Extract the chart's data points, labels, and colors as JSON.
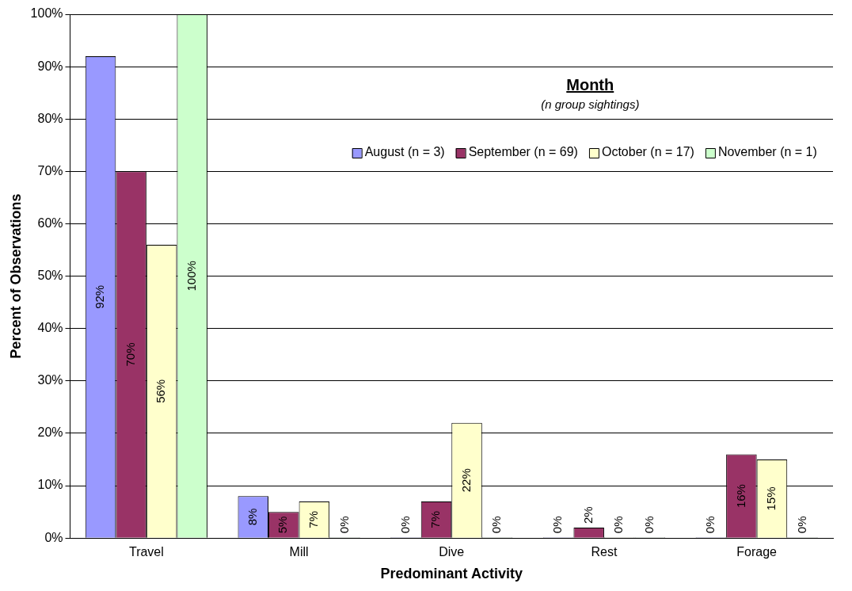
{
  "chart_data": {
    "type": "bar",
    "xlabel": "Predominant Activity",
    "ylabel": "Percent of Observations",
    "legend_title": "Month",
    "annotations": [
      "(n group sightings)"
    ],
    "categories": [
      "Travel",
      "Mill",
      "Dive",
      "Rest",
      "Forage"
    ],
    "series": [
      {
        "name": "August (n = 3)",
        "color": "#9999ff",
        "values": [
          92,
          8,
          0,
          0,
          0
        ],
        "value_labels": [
          "92%",
          "8%",
          "0%",
          "0%",
          "0%"
        ]
      },
      {
        "name": "September (n = 69)",
        "color": "#993366",
        "values": [
          70,
          5,
          7,
          2,
          16
        ],
        "value_labels": [
          "70%",
          "5%",
          "7%",
          "2%",
          "16%"
        ]
      },
      {
        "name": "October (n = 17)",
        "color": "#ffffcc",
        "values": [
          56,
          7,
          22,
          0,
          15
        ],
        "value_labels": [
          "56%",
          "7%",
          "22%",
          "0%",
          "15%"
        ]
      },
      {
        "name": "November (n = 1)",
        "color": "#ccffcc",
        "values": [
          100,
          0,
          0,
          0,
          0
        ],
        "value_labels": [
          "100%",
          "0%",
          "0%",
          "0%",
          "0%"
        ]
      }
    ],
    "ylim": [
      0,
      100
    ],
    "yticks": [
      {
        "value": 0,
        "label": "0%"
      },
      {
        "value": 10,
        "label": "10%"
      },
      {
        "value": 20,
        "label": "20%"
      },
      {
        "value": 30,
        "label": "30%"
      },
      {
        "value": 40,
        "label": "40%"
      },
      {
        "value": 50,
        "label": "50%"
      },
      {
        "value": 60,
        "label": "60%"
      },
      {
        "value": 70,
        "label": "70%"
      },
      {
        "value": 80,
        "label": "80%"
      },
      {
        "value": 90,
        "label": "90%"
      },
      {
        "value": 100,
        "label": "100%"
      }
    ],
    "grid": "y",
    "legend": "top right"
  }
}
